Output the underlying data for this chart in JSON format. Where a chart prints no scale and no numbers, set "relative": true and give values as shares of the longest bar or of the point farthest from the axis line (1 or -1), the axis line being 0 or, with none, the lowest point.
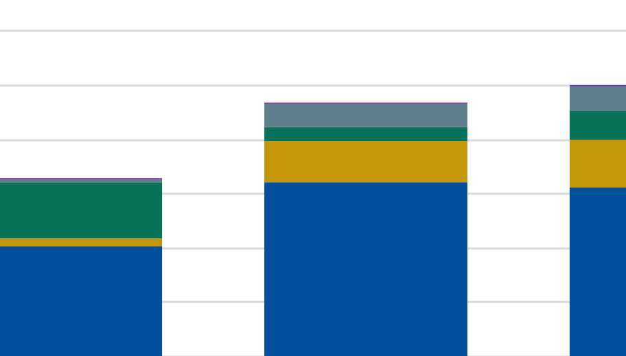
{
  "chart_data": {
    "type": "bar",
    "stacked": true,
    "relative": true,
    "grid": "y",
    "categories": [
      null,
      null,
      null
    ],
    "series": [
      {
        "color": "#00509e",
        "values": [
          0.404,
          0.641,
          0.621
        ]
      },
      {
        "color": "#c4960c",
        "values": [
          0.03,
          0.152,
          0.177
        ]
      },
      {
        "color": "#087358",
        "values": [
          0.207,
          0.051,
          0.106
        ]
      },
      {
        "color": "#5f7f8c",
        "values": [
          0.01,
          0.086,
          0.091
        ]
      },
      {
        "color": "#7030a0",
        "values": [
          0.005,
          0.005,
          0.005
        ]
      }
    ]
  }
}
